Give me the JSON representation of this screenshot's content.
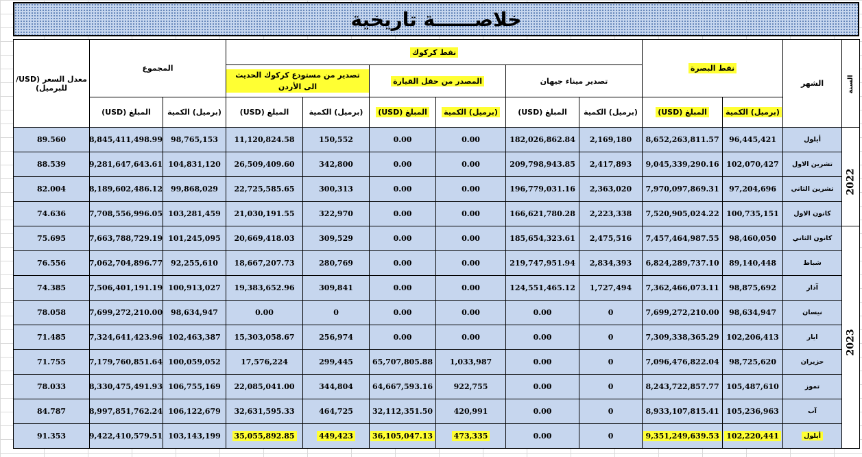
{
  "title": "خلاصــــــة تاريخية",
  "headers": {
    "year": "السنة",
    "month": "الشهر",
    "basra": "نفط البصرة",
    "kirkuk": "نفط كركوك",
    "ceyhan": "تصدير ميناء جيهان",
    "qayyarah": "المصدر من حقل القيارة",
    "jordan": "تصدير من مستودع كركوك الحديث الى الأردن",
    "total": "المجموع",
    "price": "معدل السعر (USD/للبرميل)",
    "qty": "(برميل) الكمية",
    "amount": "المبلغ (USD)"
  },
  "groups": [
    {
      "year": "2022",
      "rows": [
        {
          "month": "أيلول",
          "basra_qty": "96,445,421",
          "basra_amt": "8,652,263,811.57",
          "ceyhan_qty": "2,169,180",
          "ceyhan_amt": "182,026,862.84",
          "qay_qty": "0.00",
          "qay_amt": "0.00",
          "jor_qty": "150,552",
          "jor_amt": "11,120,824.58",
          "tot_qty": "98,765,153",
          "tot_amt": "8,845,411,498.99",
          "price": "89.560"
        },
        {
          "month": "تشرين الاول",
          "basra_qty": "102,070,427",
          "basra_amt": "9,045,339,290.16",
          "ceyhan_qty": "2,417,893",
          "ceyhan_amt": "209,798,943.85",
          "qay_qty": "0.00",
          "qay_amt": "0.00",
          "jor_qty": "342,800",
          "jor_amt": "26,509,409.60",
          "tot_qty": "104,831,120",
          "tot_amt": "9,281,647,643.61",
          "price": "88.539"
        },
        {
          "month": "تشرين الثاني",
          "basra_qty": "97,204,696",
          "basra_amt": "7,970,097,869.31",
          "ceyhan_qty": "2,363,020",
          "ceyhan_amt": "196,779,031.16",
          "qay_qty": "0.00",
          "qay_amt": "0.00",
          "jor_qty": "300,313",
          "jor_amt": "22,725,585.65",
          "tot_qty": "99,868,029",
          "tot_amt": "8,189,602,486.12",
          "price": "82.004"
        },
        {
          "month": "كانون الاول",
          "basra_qty": "100,735,151",
          "basra_amt": "7,520,905,024.22",
          "ceyhan_qty": "2,223,338",
          "ceyhan_amt": "166,621,780.28",
          "qay_qty": "0.00",
          "qay_amt": "0.00",
          "jor_qty": "322,970",
          "jor_amt": "21,030,191.55",
          "tot_qty": "103,281,459",
          "tot_amt": "7,708,556,996.05",
          "price": "74.636"
        }
      ]
    },
    {
      "year": "2023",
      "rows": [
        {
          "month": "كانون الثاني",
          "basra_qty": "98,460,050",
          "basra_amt": "7,457,464,987.55",
          "ceyhan_qty": "2,475,516",
          "ceyhan_amt": "185,654,323.61",
          "qay_qty": "0.00",
          "qay_amt": "0.00",
          "jor_qty": "309,529",
          "jor_amt": "20,669,418.03",
          "tot_qty": "101,245,095",
          "tot_amt": "7,663,788,729.19",
          "price": "75.695"
        },
        {
          "month": "شباط",
          "basra_qty": "89,140,448",
          "basra_amt": "6,824,289,737.10",
          "ceyhan_qty": "2,834,393",
          "ceyhan_amt": "219,747,951.94",
          "qay_qty": "0.00",
          "qay_amt": "0.00",
          "jor_qty": "280,769",
          "jor_amt": "18,667,207.73",
          "tot_qty": "92,255,610",
          "tot_amt": "7,062,704,896.77",
          "price": "76.556"
        },
        {
          "month": "آذار",
          "basra_qty": "98,875,692",
          "basra_amt": "7,362,466,073.11",
          "ceyhan_qty": "1,727,494",
          "ceyhan_amt": "124,551,465.12",
          "qay_qty": "0.00",
          "qay_amt": "0.00",
          "jor_qty": "309,841",
          "jor_amt": "19,383,652.96",
          "tot_qty": "100,913,027",
          "tot_amt": "7,506,401,191.19",
          "price": "74.385"
        },
        {
          "month": "نيسان",
          "basra_qty": "98,634,947",
          "basra_amt": "7,699,272,210.00",
          "ceyhan_qty": "0",
          "ceyhan_amt": "0.00",
          "qay_qty": "0.00",
          "qay_amt": "0.00",
          "jor_qty": "0",
          "jor_amt": "0.00",
          "tot_qty": "98,634,947",
          "tot_amt": "7,699,272,210.00",
          "price": "78.058"
        },
        {
          "month": "ايار",
          "basra_qty": "102,206,413",
          "basra_amt": "7,309,338,365.29",
          "ceyhan_qty": "0",
          "ceyhan_amt": "0.00",
          "qay_qty": "0.00",
          "qay_amt": "0.00",
          "jor_qty": "256,974",
          "jor_amt": "15,303,058.67",
          "tot_qty": "102,463,387",
          "tot_amt": "7,324,641,423.96",
          "price": "71.485"
        },
        {
          "month": "حزيران",
          "basra_qty": "98,725,620",
          "basra_amt": "7,096,476,822.04",
          "ceyhan_qty": "0",
          "ceyhan_amt": "0.00",
          "qay_qty": "1,033,987",
          "qay_amt": "65,707,805.88",
          "jor_qty": "299,445",
          "jor_amt": "17,576,224",
          "tot_qty": "100,059,052",
          "tot_amt": "7,179,760,851.64",
          "price": "71.755"
        },
        {
          "month": "تموز",
          "basra_qty": "105,487,610",
          "basra_amt": "8,243,722,857.77",
          "ceyhan_qty": "0",
          "ceyhan_amt": "0.00",
          "qay_qty": "922,755",
          "qay_amt": "64,667,593.16",
          "jor_qty": "344,804",
          "jor_amt": "22,085,041.00",
          "tot_qty": "106,755,169",
          "tot_amt": "8,330,475,491.93",
          "price": "78.033"
        },
        {
          "month": "آب",
          "basra_qty": "105,236,963",
          "basra_amt": "8,933,107,815.41",
          "ceyhan_qty": "0",
          "ceyhan_amt": "0.00",
          "qay_qty": "420,991",
          "qay_amt": "32,112,351.50",
          "jor_qty": "464,725",
          "jor_amt": "32,631,595.33",
          "tot_qty": "106,122,679",
          "tot_amt": "8,997,851,762.24",
          "price": "84.787"
        },
        {
          "month": "أيلول",
          "basra_qty": "102,220,441",
          "basra_amt": "9,351,249,639.53",
          "ceyhan_qty": "0",
          "ceyhan_amt": "0.00",
          "qay_qty": "473,335",
          "qay_amt": "36,105,047.13",
          "jor_qty": "449,423",
          "jor_amt": "35,055,892.85",
          "tot_qty": "103,143,199",
          "tot_amt": "9,422,410,579.51",
          "price": "91.353"
        }
      ]
    }
  ],
  "highlight_color": "#ffff33",
  "cell_color": "#c6d6ee"
}
